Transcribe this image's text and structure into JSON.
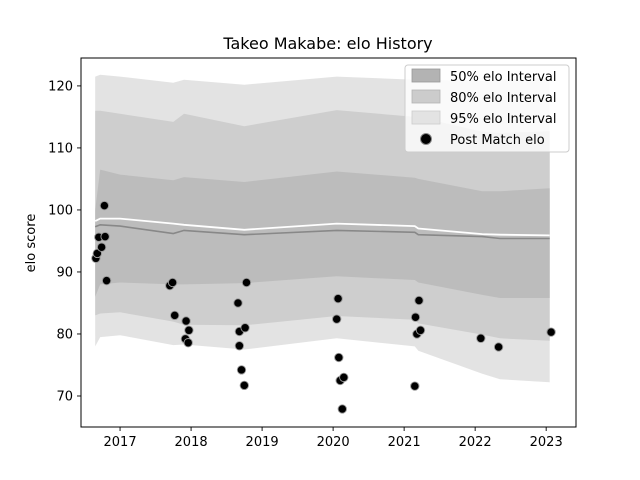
{
  "chart_data": {
    "type": "scatter",
    "title": "Takeo Makabe: elo History",
    "xlabel": "",
    "ylabel": "elo score",
    "xlim": [
      2016.45,
      2023.42
    ],
    "ylim": [
      65.0,
      124.5
    ],
    "xticks": [
      2017,
      2018,
      2019,
      2020,
      2021,
      2022,
      2023
    ],
    "yticks": [
      70,
      80,
      90,
      100,
      110,
      120
    ],
    "grid": false,
    "legend_position": "top-right",
    "legend": [
      {
        "label": "50% elo Interval",
        "kind": "band",
        "color": "#b3b3b3"
      },
      {
        "label": "80% elo Interval",
        "kind": "band",
        "color": "#cccccc"
      },
      {
        "label": "95% elo Interval",
        "kind": "band",
        "color": "#e3e3e3"
      },
      {
        "label": "Post Match elo",
        "kind": "marker",
        "color": "#000000"
      }
    ],
    "bands": {
      "x": [
        2016.65,
        2016.72,
        2017.0,
        2017.75,
        2017.9,
        2018.75,
        2020.05,
        2021.15,
        2021.2,
        2022.1,
        2022.35,
        2023.05
      ],
      "mean": [
        97.3,
        97.6,
        97.4,
        96.2,
        96.7,
        96.0,
        96.7,
        96.4,
        96.0,
        95.7,
        95.4,
        95.4
      ],
      "median": [
        98.2,
        98.6,
        98.6,
        97.8,
        97.6,
        96.8,
        97.8,
        97.4,
        97.0,
        96.1,
        96.0,
        95.9
      ],
      "p50": {
        "lower": [
          86.0,
          88.0,
          88.3,
          88.0,
          88.0,
          88.2,
          89.3,
          88.7,
          88.3,
          86.3,
          85.8,
          85.8
        ],
        "upper": [
          100.0,
          106.5,
          105.7,
          104.8,
          105.3,
          104.5,
          106.2,
          105.2,
          105.0,
          103.0,
          103.0,
          103.5
        ]
      },
      "p80": {
        "lower": [
          83.0,
          83.3,
          83.5,
          82.0,
          81.5,
          81.4,
          82.9,
          82.3,
          81.7,
          79.9,
          79.3,
          78.9
        ],
        "upper": [
          116.0,
          116.0,
          115.5,
          114.2,
          115.5,
          113.5,
          116.1,
          115.0,
          115.0,
          112.6,
          112.4,
          112.7
        ]
      },
      "p95": {
        "lower": [
          78.0,
          79.5,
          79.8,
          78.2,
          78.3,
          77.5,
          79.3,
          78.0,
          77.3,
          73.6,
          72.7,
          72.2
        ],
        "upper": [
          121.5,
          121.8,
          121.5,
          120.5,
          121.0,
          120.2,
          121.5,
          121.0,
          121.0,
          120.8,
          121.0,
          121.3
        ]
      }
    },
    "points": [
      {
        "x": 2016.66,
        "y": 92.2
      },
      {
        "x": 2016.68,
        "y": 93.0
      },
      {
        "x": 2016.7,
        "y": 95.6
      },
      {
        "x": 2016.74,
        "y": 94.0
      },
      {
        "x": 2016.78,
        "y": 100.7
      },
      {
        "x": 2016.79,
        "y": 95.7
      },
      {
        "x": 2016.81,
        "y": 88.6
      },
      {
        "x": 2017.7,
        "y": 87.8
      },
      {
        "x": 2017.74,
        "y": 88.3
      },
      {
        "x": 2017.77,
        "y": 83.0
      },
      {
        "x": 2017.92,
        "y": 79.2
      },
      {
        "x": 2017.93,
        "y": 82.1
      },
      {
        "x": 2017.96,
        "y": 78.6
      },
      {
        "x": 2017.97,
        "y": 80.6
      },
      {
        "x": 2018.66,
        "y": 85.0
      },
      {
        "x": 2018.68,
        "y": 80.4
      },
      {
        "x": 2018.68,
        "y": 78.1
      },
      {
        "x": 2018.71,
        "y": 74.2
      },
      {
        "x": 2018.75,
        "y": 71.7
      },
      {
        "x": 2018.76,
        "y": 81.0
      },
      {
        "x": 2018.78,
        "y": 88.3
      },
      {
        "x": 2020.05,
        "y": 82.4
      },
      {
        "x": 2020.07,
        "y": 85.7
      },
      {
        "x": 2020.08,
        "y": 76.2
      },
      {
        "x": 2020.1,
        "y": 72.5
      },
      {
        "x": 2020.13,
        "y": 67.9
      },
      {
        "x": 2020.15,
        "y": 73.0
      },
      {
        "x": 2021.15,
        "y": 71.6
      },
      {
        "x": 2021.16,
        "y": 82.7
      },
      {
        "x": 2021.18,
        "y": 80.0
      },
      {
        "x": 2021.21,
        "y": 85.4
      },
      {
        "x": 2021.23,
        "y": 80.6
      },
      {
        "x": 2022.08,
        "y": 79.3
      },
      {
        "x": 2022.33,
        "y": 77.9
      },
      {
        "x": 2023.07,
        "y": 80.3
      }
    ]
  }
}
